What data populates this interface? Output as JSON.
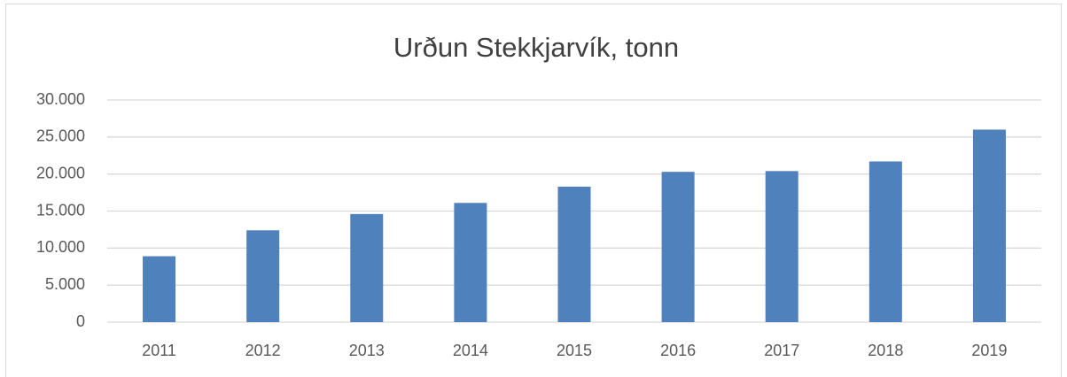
{
  "chart_data": {
    "type": "bar",
    "title": "Urðun Stekkjarvík, tonn",
    "categories": [
      "2011",
      "2012",
      "2013",
      "2014",
      "2015",
      "2016",
      "2017",
      "2018",
      "2019"
    ],
    "values": [
      8900,
      12400,
      14600,
      16100,
      18300,
      20300,
      20400,
      21700,
      26000
    ],
    "color": "#4f81bd",
    "ylim": [
      0,
      30000
    ],
    "yticks": [
      0,
      {
        "value": 5000,
        "label": "5.000"
      },
      {
        "value": 10000,
        "label": "10.000"
      },
      {
        "value": 15000,
        "label": "15.000"
      },
      {
        "value": 20000,
        "label": "20.000"
      },
      {
        "value": 25000,
        "label": "25.000"
      },
      {
        "value": 30000,
        "label": "30.000"
      }
    ],
    "grid": true
  }
}
